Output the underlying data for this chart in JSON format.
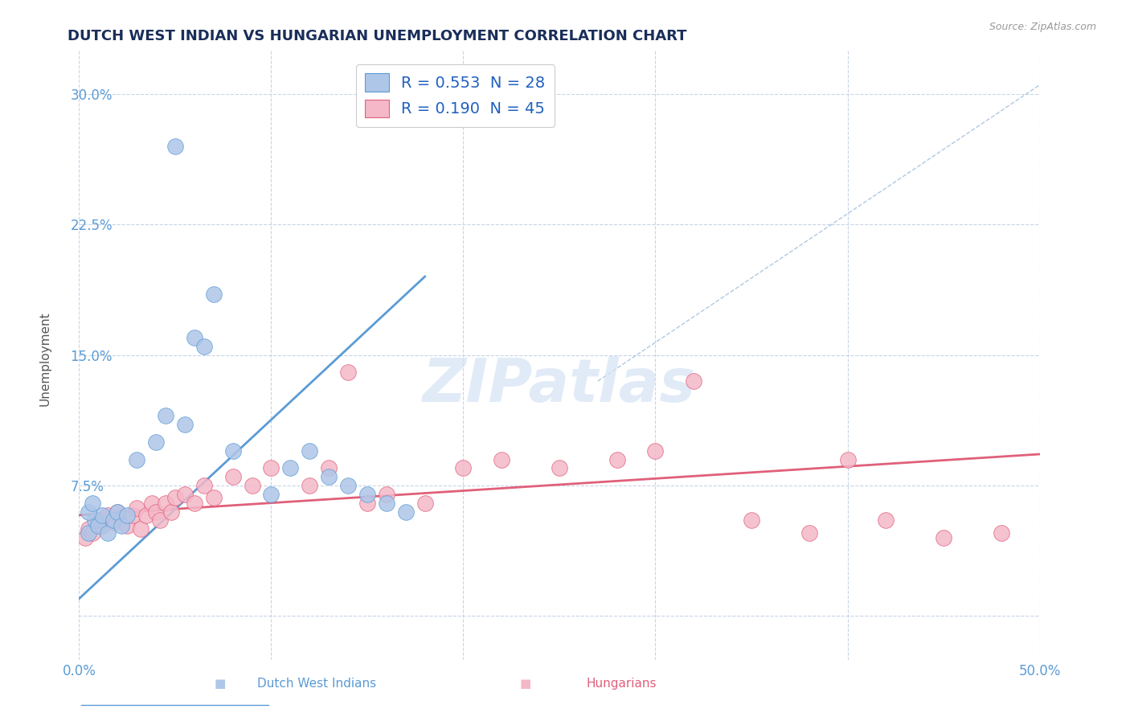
{
  "title": "DUTCH WEST INDIAN VS HUNGARIAN UNEMPLOYMENT CORRELATION CHART",
  "source": "Source: ZipAtlas.com",
  "ylabel": "Unemployment",
  "xlim": [
    0.0,
    0.5
  ],
  "ylim": [
    -0.025,
    0.325
  ],
  "yticks": [
    0.0,
    0.075,
    0.15,
    0.225,
    0.3
  ],
  "ytick_labels": [
    "",
    "7.5%",
    "15.0%",
    "22.5%",
    "30.0%"
  ],
  "xticks": [
    0.0,
    0.1,
    0.2,
    0.3,
    0.4,
    0.5
  ],
  "xtick_labels": [
    "0.0%",
    "",
    "",
    "",
    "",
    "50.0%"
  ],
  "legend_entries": [
    {
      "label": "R = 0.553  N = 28",
      "color": "#aec6e8"
    },
    {
      "label": "R = 0.190  N = 45",
      "color": "#f4b8c8"
    }
  ],
  "blue_color": "#5b9bd5",
  "pink_color": "#e0607a",
  "blue_scatter_color": "#aec6e8",
  "pink_scatter_color": "#f4b8c8",
  "watermark": "ZIPatlas",
  "blue_points": [
    [
      0.005,
      0.048
    ],
    [
      0.008,
      0.055
    ],
    [
      0.01,
      0.052
    ],
    [
      0.012,
      0.058
    ],
    [
      0.015,
      0.048
    ],
    [
      0.018,
      0.055
    ],
    [
      0.02,
      0.06
    ],
    [
      0.022,
      0.052
    ],
    [
      0.025,
      0.058
    ],
    [
      0.005,
      0.06
    ],
    [
      0.007,
      0.065
    ],
    [
      0.03,
      0.09
    ],
    [
      0.04,
      0.1
    ],
    [
      0.045,
      0.115
    ],
    [
      0.055,
      0.11
    ],
    [
      0.06,
      0.16
    ],
    [
      0.065,
      0.155
    ],
    [
      0.07,
      0.185
    ],
    [
      0.08,
      0.095
    ],
    [
      0.1,
      0.07
    ],
    [
      0.11,
      0.085
    ],
    [
      0.12,
      0.095
    ],
    [
      0.13,
      0.08
    ],
    [
      0.14,
      0.075
    ],
    [
      0.15,
      0.07
    ],
    [
      0.16,
      0.065
    ],
    [
      0.17,
      0.06
    ],
    [
      0.05,
      0.27
    ]
  ],
  "pink_points": [
    [
      0.003,
      0.045
    ],
    [
      0.005,
      0.05
    ],
    [
      0.007,
      0.048
    ],
    [
      0.01,
      0.055
    ],
    [
      0.012,
      0.052
    ],
    [
      0.015,
      0.058
    ],
    [
      0.018,
      0.054
    ],
    [
      0.02,
      0.06
    ],
    [
      0.022,
      0.056
    ],
    [
      0.025,
      0.052
    ],
    [
      0.028,
      0.058
    ],
    [
      0.03,
      0.062
    ],
    [
      0.032,
      0.05
    ],
    [
      0.035,
      0.058
    ],
    [
      0.038,
      0.065
    ],
    [
      0.04,
      0.06
    ],
    [
      0.042,
      0.055
    ],
    [
      0.045,
      0.065
    ],
    [
      0.048,
      0.06
    ],
    [
      0.05,
      0.068
    ],
    [
      0.055,
      0.07
    ],
    [
      0.06,
      0.065
    ],
    [
      0.065,
      0.075
    ],
    [
      0.07,
      0.068
    ],
    [
      0.08,
      0.08
    ],
    [
      0.09,
      0.075
    ],
    [
      0.1,
      0.085
    ],
    [
      0.12,
      0.075
    ],
    [
      0.13,
      0.085
    ],
    [
      0.14,
      0.14
    ],
    [
      0.15,
      0.065
    ],
    [
      0.16,
      0.07
    ],
    [
      0.18,
      0.065
    ],
    [
      0.2,
      0.085
    ],
    [
      0.22,
      0.09
    ],
    [
      0.25,
      0.085
    ],
    [
      0.28,
      0.09
    ],
    [
      0.3,
      0.095
    ],
    [
      0.32,
      0.135
    ],
    [
      0.35,
      0.055
    ],
    [
      0.38,
      0.048
    ],
    [
      0.4,
      0.09
    ],
    [
      0.42,
      0.055
    ],
    [
      0.45,
      0.045
    ],
    [
      0.48,
      0.048
    ]
  ],
  "blue_reg_line": {
    "x0": 0.0,
    "y0": 0.01,
    "x1": 0.18,
    "y1": 0.195
  },
  "pink_reg_line": {
    "x0": 0.0,
    "y0": 0.058,
    "x1": 0.5,
    "y1": 0.093
  },
  "diag_line": {
    "x0": 0.27,
    "y0": 0.135,
    "x1": 0.5,
    "y1": 0.305
  },
  "background_color": "#ffffff",
  "grid_color": "#c8d4e8",
  "title_color": "#1a2e5a",
  "axis_label_color": "#5b9bd5",
  "watermark_color": "#d5e3f5"
}
